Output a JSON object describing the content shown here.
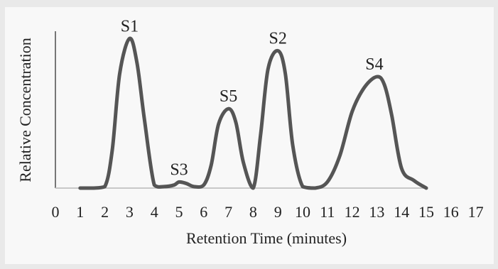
{
  "chart_data": {
    "type": "line",
    "title": "",
    "xlabel": "Retention Time (minutes)",
    "ylabel": "Relative Concentration",
    "xlim": [
      0,
      17
    ],
    "ylim": [
      0,
      1.0
    ],
    "x_ticks": [
      "0",
      "1",
      "2",
      "3",
      "4",
      "5",
      "6",
      "7",
      "8",
      "9",
      "10",
      "11",
      "12",
      "13",
      "14",
      "15",
      "16",
      "17"
    ],
    "grid": false,
    "legend": "none",
    "line_color": "#555555",
    "series": [
      {
        "x": [
          1,
          1.5,
          2,
          2.3,
          2.6,
          3,
          3.3,
          3.6,
          4,
          4.4,
          4.8,
          5,
          5.3,
          5.6,
          6,
          6.3,
          6.6,
          7,
          7.3,
          7.6,
          8,
          8.3,
          8.6,
          9,
          9.3,
          9.6,
          10,
          10.5,
          11,
          11.5,
          12,
          12.5,
          13,
          13.3,
          13.6,
          14,
          14.5,
          15
        ],
        "y": [
          0.0,
          0.0,
          0.01,
          0.25,
          0.75,
          0.98,
          0.82,
          0.45,
          0.02,
          0.01,
          0.02,
          0.04,
          0.03,
          0.01,
          0.02,
          0.15,
          0.42,
          0.52,
          0.43,
          0.17,
          0.0,
          0.35,
          0.78,
          0.9,
          0.75,
          0.28,
          0.01,
          0.0,
          0.04,
          0.21,
          0.5,
          0.66,
          0.73,
          0.68,
          0.48,
          0.13,
          0.05,
          0.0
        ]
      }
    ],
    "annotations": [
      {
        "text": "S1",
        "x": 3,
        "y": 0.98
      },
      {
        "text": "S3",
        "x": 5,
        "y": 0.04
      },
      {
        "text": "S5",
        "x": 7,
        "y": 0.52
      },
      {
        "text": "S2",
        "x": 9,
        "y": 0.9
      },
      {
        "text": "S4",
        "x": 12.9,
        "y": 0.73
      }
    ]
  }
}
